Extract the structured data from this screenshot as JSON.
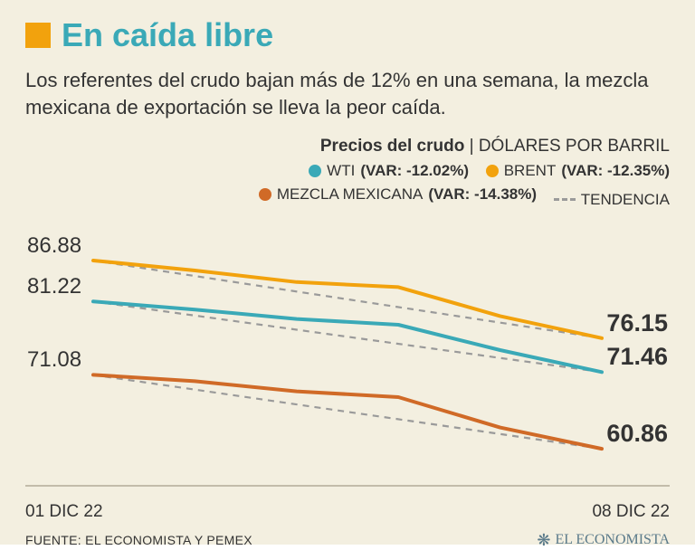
{
  "background_color": "#f3efe0",
  "accent_color": "#3aa9b7",
  "text_color": "#333333",
  "accent_marker_color": "#f2a20d",
  "title": "En caída libre",
  "subtitle": "Los referentes del crudo bajan más de 12% en una semana, la mezcla mexicana de exportación se lleva la peor caída.",
  "legend": {
    "title_bold": "Precios del crudo",
    "title_sep": " | ",
    "title_unit": "DÓLARES POR BARRIL",
    "trend_label": "TENDENCIA"
  },
  "chart": {
    "type": "line",
    "x_count": 6,
    "x_start_label": "01 DIC 22",
    "x_end_label": "08 DIC 22",
    "y_min": 56,
    "y_max": 92,
    "baseline_color": "#b2ac97",
    "trend_color": "#9a9a9a",
    "trend_dash": "7,6",
    "line_width": 4,
    "trend_width": 2.2,
    "series": [
      {
        "name": "WTI",
        "var_label": "(VAR: -12.02%)",
        "color": "#3aa9b7",
        "start_value": 81.22,
        "end_value": 71.46,
        "values": [
          81.22,
          80.1,
          78.8,
          78.0,
          74.5,
          71.46
        ]
      },
      {
        "name": "BRENT",
        "var_label": "(VAR: -12.35%)",
        "color": "#f2a20d",
        "start_value": 86.88,
        "end_value": 76.15,
        "values": [
          86.88,
          85.5,
          83.9,
          83.2,
          79.2,
          76.15
        ]
      },
      {
        "name": "MEZCLA MEXICANA",
        "var_label": "(VAR: -14.38%)",
        "color": "#d06a27",
        "start_value": 71.08,
        "end_value": 60.86,
        "values": [
          71.08,
          70.2,
          68.8,
          68.0,
          63.8,
          60.86
        ]
      }
    ]
  },
  "source": "FUENTE: EL ECONOMISTA Y PEMEX",
  "brand": "EL ECONOMISTA",
  "brand_color": "#5a7a8a"
}
